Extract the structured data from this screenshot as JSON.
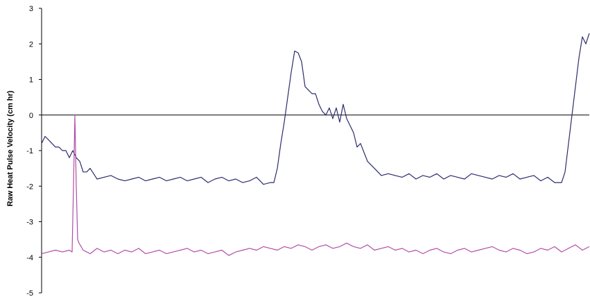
{
  "chart_data": {
    "type": "line",
    "title": "",
    "xlabel": "",
    "ylabel": "Raw Heat Pulse Velocity (cm hr)",
    "ylim": [
      -5,
      3
    ],
    "yticks": [
      3,
      2,
      1,
      0,
      -1,
      -2,
      -3,
      -4,
      -5
    ],
    "xlim": [
      0,
      790
    ],
    "grid": false,
    "zero_line": true,
    "series": [
      {
        "color": "#2b2b6e",
        "x": [
          0,
          5,
          10,
          15,
          20,
          25,
          30,
          35,
          40,
          45,
          50,
          55,
          60,
          65,
          70,
          80,
          90,
          100,
          110,
          120,
          130,
          140,
          150,
          160,
          170,
          180,
          190,
          200,
          210,
          220,
          230,
          240,
          250,
          260,
          270,
          280,
          290,
          300,
          310,
          320,
          330,
          335,
          340,
          345,
          350,
          355,
          360,
          365,
          370,
          375,
          380,
          385,
          390,
          395,
          400,
          405,
          410,
          415,
          420,
          425,
          430,
          435,
          440,
          445,
          450,
          455,
          460,
          470,
          480,
          490,
          500,
          510,
          520,
          530,
          540,
          550,
          560,
          570,
          580,
          590,
          600,
          610,
          620,
          630,
          640,
          650,
          660,
          670,
          680,
          690,
          700,
          710,
          720,
          730,
          740,
          750,
          755,
          760,
          765,
          770,
          775,
          780,
          785,
          790
        ],
        "values": [
          -0.8,
          -0.6,
          -0.7,
          -0.8,
          -0.9,
          -0.9,
          -1.0,
          -1.0,
          -1.2,
          -1.0,
          -1.2,
          -1.3,
          -1.6,
          -1.6,
          -1.5,
          -1.8,
          -1.75,
          -1.7,
          -1.8,
          -1.85,
          -1.8,
          -1.75,
          -1.85,
          -1.8,
          -1.75,
          -1.85,
          -1.8,
          -1.75,
          -1.85,
          -1.8,
          -1.75,
          -1.9,
          -1.8,
          -1.75,
          -1.85,
          -1.8,
          -1.9,
          -1.85,
          -1.75,
          -1.95,
          -1.9,
          -1.9,
          -1.5,
          -0.8,
          -0.2,
          0.5,
          1.2,
          1.8,
          1.75,
          1.5,
          0.8,
          0.7,
          0.6,
          0.6,
          0.3,
          0.1,
          0.0,
          0.2,
          -0.1,
          0.2,
          -0.2,
          0.3,
          -0.1,
          -0.3,
          -0.5,
          -0.9,
          -0.8,
          -1.3,
          -1.5,
          -1.7,
          -1.65,
          -1.7,
          -1.75,
          -1.65,
          -1.8,
          -1.7,
          -1.75,
          -1.65,
          -1.8,
          -1.7,
          -1.75,
          -1.8,
          -1.65,
          -1.7,
          -1.75,
          -1.8,
          -1.7,
          -1.75,
          -1.65,
          -1.8,
          -1.75,
          -1.7,
          -1.85,
          -1.75,
          -1.9,
          -1.9,
          -1.6,
          -0.8,
          0.0,
          0.8,
          1.6,
          2.2,
          2.0,
          2.3
        ]
      },
      {
        "color": "#b04da8",
        "x": [
          0,
          10,
          20,
          30,
          40,
          44,
          46,
          48,
          50,
          52,
          54,
          60,
          70,
          80,
          90,
          100,
          110,
          120,
          130,
          140,
          150,
          160,
          170,
          180,
          190,
          200,
          210,
          220,
          230,
          240,
          250,
          260,
          270,
          280,
          290,
          300,
          310,
          320,
          330,
          340,
          350,
          360,
          370,
          380,
          390,
          400,
          410,
          420,
          430,
          440,
          450,
          460,
          470,
          480,
          490,
          500,
          510,
          520,
          530,
          540,
          550,
          560,
          570,
          580,
          590,
          600,
          610,
          620,
          630,
          640,
          650,
          660,
          670,
          680,
          690,
          700,
          710,
          720,
          730,
          740,
          750,
          760,
          770,
          780,
          790
        ],
        "values": [
          -3.9,
          -3.85,
          -3.8,
          -3.85,
          -3.8,
          -3.85,
          -2.0,
          0.0,
          -2.0,
          -3.5,
          -3.6,
          -3.8,
          -3.9,
          -3.75,
          -3.85,
          -3.8,
          -3.9,
          -3.8,
          -3.85,
          -3.75,
          -3.9,
          -3.85,
          -3.8,
          -3.9,
          -3.85,
          -3.8,
          -3.75,
          -3.85,
          -3.8,
          -3.9,
          -3.85,
          -3.8,
          -3.95,
          -3.85,
          -3.8,
          -3.75,
          -3.8,
          -3.7,
          -3.75,
          -3.8,
          -3.7,
          -3.75,
          -3.65,
          -3.7,
          -3.8,
          -3.7,
          -3.65,
          -3.75,
          -3.7,
          -3.6,
          -3.7,
          -3.75,
          -3.65,
          -3.8,
          -3.75,
          -3.7,
          -3.8,
          -3.75,
          -3.85,
          -3.8,
          -3.9,
          -3.8,
          -3.75,
          -3.85,
          -3.9,
          -3.8,
          -3.75,
          -3.85,
          -3.8,
          -3.75,
          -3.7,
          -3.8,
          -3.85,
          -3.75,
          -3.8,
          -3.9,
          -3.85,
          -3.75,
          -3.8,
          -3.7,
          -3.85,
          -3.75,
          -3.65,
          -3.8,
          -3.7
        ]
      }
    ]
  }
}
